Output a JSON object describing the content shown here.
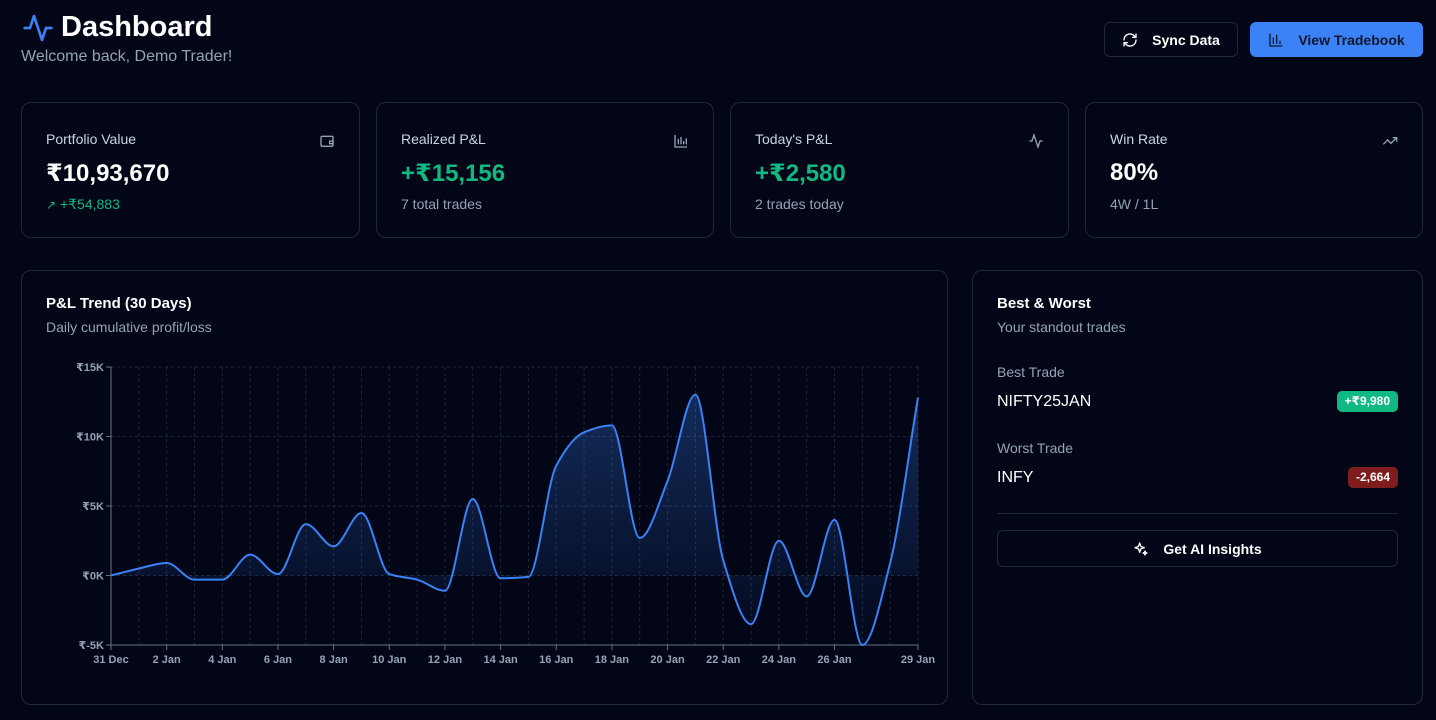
{
  "header": {
    "title": "Dashboard",
    "subtitle": "Welcome back, Demo Trader!",
    "buttons": [
      "Sync Data",
      "View Tradebook"
    ]
  },
  "stats": [
    {
      "label": "Portfolio Value",
      "value": "₹10,93,670",
      "detail": "+₹54,883"
    },
    {
      "label": "Realized P&L",
      "value": "+₹15,156",
      "detail": "7 total trades"
    },
    {
      "label": "Today's P&L",
      "value": "+₹2,580",
      "detail": "2 trades today"
    },
    {
      "label": "Win Rate",
      "value": "80%",
      "detail": "4W / 1L"
    }
  ],
  "chart_data": {
    "type": "line",
    "title": "P&L Trend (30 Days)",
    "subtitle": "Daily cumulative profit/loss",
    "categories": [
      "31 Dec",
      null,
      "2 Jan",
      null,
      "4 Jan",
      null,
      "6 Jan",
      null,
      "8 Jan",
      null,
      "10 Jan",
      null,
      "12 Jan",
      null,
      "14 Jan",
      null,
      "16 Jan",
      null,
      "18 Jan",
      null,
      "20 Jan",
      null,
      "22 Jan",
      null,
      "24 Jan",
      null,
      "26 Jan",
      null,
      null,
      "29 Jan"
    ],
    "values": [
      0,
      500,
      900,
      -300,
      -300,
      1500,
      100,
      3700,
      2100,
      4500,
      100,
      -300,
      -1100,
      5500,
      -200,
      -100,
      7900,
      10300,
      10800,
      2700,
      6800,
      13000,
      1100,
      -3500,
      2500,
      -1500,
      4000,
      -5000,
      900,
      12800
    ],
    "color": "#3b82f6",
    "area": true,
    "grid": true,
    "ylim": [
      -5000,
      15000
    ],
    "yticks": [
      {
        "value": -5000,
        "label": "₹-5K"
      },
      {
        "value": 0,
        "label": "₹0K"
      },
      {
        "value": 5000,
        "label": "₹5K"
      },
      {
        "value": 10000,
        "label": "₹10K"
      },
      {
        "value": 15000,
        "label": "₹15K"
      }
    ]
  },
  "highlights": {
    "title": "Best & Worst",
    "subtitle": "Your standout trades",
    "best": {
      "label": "Best Trade",
      "symbol": "NIFTY25JAN",
      "pnl": "+₹9,980"
    },
    "worst": {
      "label": "Worst Trade",
      "symbol": "INFY",
      "pnl": "-2,664"
    },
    "button": "Get AI Insights"
  }
}
